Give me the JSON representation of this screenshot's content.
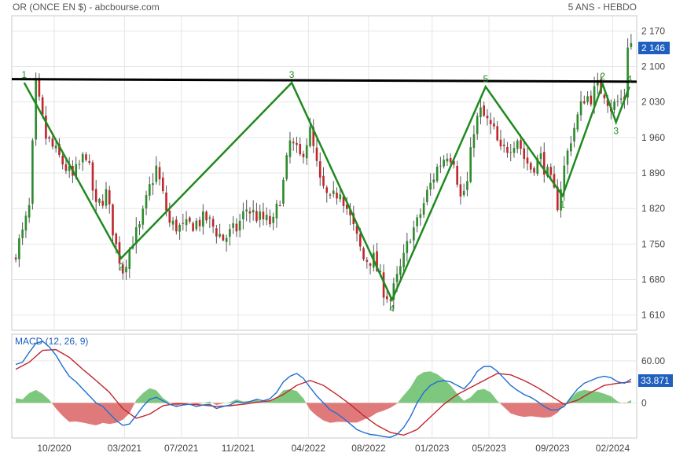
{
  "header": {
    "title": "OR (ONCE EN $) - abcbourse.com",
    "period": "5 ANS - HEBDO"
  },
  "colors": {
    "up": "#2e8b2e",
    "down": "#c1272d",
    "wick": "#555555",
    "wave": "#1f8a1f",
    "resistance": "#000000",
    "macd_line": "#1f6fd1",
    "signal_line": "#c1272d",
    "hist_pos": "#7ec77e",
    "hist_neg": "#e07a7a",
    "badge_bg": "#1f5fbf",
    "grid": "#e6e6e6"
  },
  "chart_data": [
    {
      "type": "candlestick",
      "title": "OR (ONCE EN $) - abcbourse.com",
      "ylim": [
        1580,
        2200
      ],
      "y_ticks": [
        "2 170",
        "2 100",
        "2 030",
        "1 960",
        "1 890",
        "1 820",
        "1 750",
        "1 680",
        "1 610"
      ],
      "y_tick_values": [
        2170,
        2100,
        2030,
        1960,
        1890,
        1820,
        1750,
        1680,
        1610
      ],
      "x_ticks": [
        "10/2020",
        "03/2021",
        "07/2021",
        "11/2021",
        "04/2022",
        "08/2022",
        "01/2023",
        "05/2023",
        "09/2023",
        "02/2024"
      ],
      "x_tick_weeks": [
        12,
        33,
        50,
        67,
        88,
        106,
        125,
        142,
        161,
        179
      ],
      "last_price": "2 146",
      "resistance": {
        "start": 2075,
        "end": 2070
      },
      "grid": true,
      "wave_points": [
        {
          "week": 3,
          "price": 2068,
          "label": "1"
        },
        {
          "week": 32,
          "price": 1722,
          "label": "2"
        },
        {
          "week": 83,
          "price": 2068,
          "label": "3"
        },
        {
          "week": 113,
          "price": 1640,
          "label": "4"
        },
        {
          "week": 141,
          "price": 2060,
          "label": "5"
        },
        {
          "week": 164,
          "price": 1845,
          "label": "1"
        },
        {
          "week": 176,
          "price": 2065,
          "label": "2"
        },
        {
          "week": 180,
          "price": 1990,
          "label": "3"
        },
        {
          "week": 184,
          "price": 2060,
          "label": "4"
        }
      ],
      "anchors": [
        [
          0,
          1720
        ],
        [
          3,
          1770
        ],
        [
          5,
          1820
        ],
        [
          7,
          2060
        ],
        [
          10,
          1960
        ],
        [
          14,
          1920
        ],
        [
          18,
          1880
        ],
        [
          22,
          1930
        ],
        [
          25,
          1820
        ],
        [
          28,
          1850
        ],
        [
          31,
          1745
        ],
        [
          33,
          1700
        ],
        [
          36,
          1760
        ],
        [
          38,
          1780
        ],
        [
          41,
          1860
        ],
        [
          43,
          1900
        ],
        [
          47,
          1790
        ],
        [
          51,
          1780
        ],
        [
          54,
          1790
        ],
        [
          58,
          1800
        ],
        [
          63,
          1760
        ],
        [
          67,
          1780
        ],
        [
          70,
          1820
        ],
        [
          74,
          1800
        ],
        [
          78,
          1790
        ],
        [
          81,
          1870
        ],
        [
          83,
          1950
        ],
        [
          86,
          1920
        ],
        [
          89,
          1970
        ],
        [
          92,
          1870
        ],
        [
          95,
          1830
        ],
        [
          98,
          1860
        ],
        [
          102,
          1780
        ],
        [
          105,
          1720
        ],
        [
          108,
          1720
        ],
        [
          111,
          1660
        ],
        [
          113,
          1640
        ],
        [
          115,
          1680
        ],
        [
          117,
          1720
        ],
        [
          119,
          1770
        ],
        [
          121,
          1790
        ],
        [
          124,
          1850
        ],
        [
          127,
          1900
        ],
        [
          130,
          1930
        ],
        [
          132,
          1920
        ],
        [
          134,
          1840
        ],
        [
          136,
          1870
        ],
        [
          138,
          1980
        ],
        [
          140,
          2010
        ],
        [
          142,
          1990
        ],
        [
          144,
          1970
        ],
        [
          146,
          1930
        ],
        [
          148,
          1940
        ],
        [
          151,
          1960
        ],
        [
          153,
          1920
        ],
        [
          155,
          1900
        ],
        [
          158,
          1920
        ],
        [
          161,
          1870
        ],
        [
          163,
          1830
        ],
        [
          165,
          1900
        ],
        [
          167,
          1960
        ],
        [
          169,
          2000
        ],
        [
          171,
          2040
        ],
        [
          173,
          2040
        ],
        [
          175,
          2060
        ],
        [
          177,
          2050
        ],
        [
          179,
          2020
        ],
        [
          181,
          2030
        ],
        [
          183,
          2040
        ],
        [
          184,
          2146
        ]
      ]
    },
    {
      "type": "macd",
      "title": "MACD (12, 26, 9)",
      "ylim": [
        -50,
        98
      ],
      "y_ticks": [
        "60.00",
        "0"
      ],
      "y_tick_values": [
        60,
        0
      ],
      "last_value": "33.871",
      "macd": [
        [
          0,
          55
        ],
        [
          2,
          58
        ],
        [
          4,
          72
        ],
        [
          6,
          85
        ],
        [
          8,
          88
        ],
        [
          10,
          80
        ],
        [
          12,
          68
        ],
        [
          14,
          52
        ],
        [
          16,
          38
        ],
        [
          18,
          30
        ],
        [
          20,
          20
        ],
        [
          22,
          10
        ],
        [
          24,
          0
        ],
        [
          26,
          -5
        ],
        [
          28,
          -15
        ],
        [
          30,
          -25
        ],
        [
          32,
          -32
        ],
        [
          34,
          -30
        ],
        [
          36,
          -18
        ],
        [
          38,
          -5
        ],
        [
          40,
          5
        ],
        [
          42,
          8
        ],
        [
          44,
          3
        ],
        [
          46,
          -2
        ],
        [
          48,
          -5
        ],
        [
          50,
          -3
        ],
        [
          52,
          -2
        ],
        [
          54,
          -5
        ],
        [
          56,
          -3
        ],
        [
          58,
          -2
        ],
        [
          60,
          -8
        ],
        [
          62,
          -5
        ],
        [
          64,
          -3
        ],
        [
          66,
          2
        ],
        [
          68,
          0
        ],
        [
          70,
          2
        ],
        [
          72,
          5
        ],
        [
          74,
          3
        ],
        [
          76,
          6
        ],
        [
          78,
          15
        ],
        [
          80,
          30
        ],
        [
          82,
          38
        ],
        [
          84,
          42
        ],
        [
          86,
          35
        ],
        [
          88,
          22
        ],
        [
          90,
          10
        ],
        [
          92,
          0
        ],
        [
          94,
          -10
        ],
        [
          96,
          -15
        ],
        [
          98,
          -22
        ],
        [
          100,
          -30
        ],
        [
          102,
          -38
        ],
        [
          104,
          -42
        ],
        [
          106,
          -45
        ],
        [
          108,
          -46
        ],
        [
          110,
          -48
        ],
        [
          112,
          -49
        ],
        [
          114,
          -45
        ],
        [
          116,
          -35
        ],
        [
          118,
          -20
        ],
        [
          120,
          0
        ],
        [
          122,
          15
        ],
        [
          124,
          25
        ],
        [
          126,
          30
        ],
        [
          128,
          32
        ],
        [
          130,
          30
        ],
        [
          132,
          25
        ],
        [
          134,
          20
        ],
        [
          136,
          30
        ],
        [
          138,
          45
        ],
        [
          140,
          52
        ],
        [
          142,
          52
        ],
        [
          144,
          45
        ],
        [
          146,
          35
        ],
        [
          148,
          25
        ],
        [
          150,
          18
        ],
        [
          152,
          12
        ],
        [
          154,
          8
        ],
        [
          156,
          2
        ],
        [
          158,
          -5
        ],
        [
          160,
          -10
        ],
        [
          162,
          -10
        ],
        [
          164,
          -5
        ],
        [
          166,
          8
        ],
        [
          168,
          20
        ],
        [
          170,
          28
        ],
        [
          172,
          32
        ],
        [
          174,
          36
        ],
        [
          176,
          38
        ],
        [
          178,
          36
        ],
        [
          180,
          30
        ],
        [
          182,
          28
        ],
        [
          184,
          34
        ]
      ],
      "signal": [
        [
          0,
          48
        ],
        [
          4,
          58
        ],
        [
          8,
          75
        ],
        [
          12,
          76
        ],
        [
          16,
          65
        ],
        [
          20,
          48
        ],
        [
          24,
          32
        ],
        [
          28,
          15
        ],
        [
          32,
          -8
        ],
        [
          36,
          -22
        ],
        [
          40,
          -16
        ],
        [
          44,
          -4
        ],
        [
          48,
          -1
        ],
        [
          52,
          -2
        ],
        [
          56,
          -3
        ],
        [
          60,
          -5
        ],
        [
          64,
          -4
        ],
        [
          68,
          -2
        ],
        [
          72,
          1
        ],
        [
          76,
          3
        ],
        [
          80,
          12
        ],
        [
          84,
          25
        ],
        [
          88,
          32
        ],
        [
          92,
          25
        ],
        [
          96,
          12
        ],
        [
          100,
          -2
        ],
        [
          104,
          -18
        ],
        [
          108,
          -32
        ],
        [
          112,
          -42
        ],
        [
          116,
          -46
        ],
        [
          120,
          -38
        ],
        [
          124,
          -20
        ],
        [
          128,
          -2
        ],
        [
          132,
          12
        ],
        [
          136,
          22
        ],
        [
          140,
          32
        ],
        [
          144,
          42
        ],
        [
          148,
          40
        ],
        [
          152,
          32
        ],
        [
          156,
          22
        ],
        [
          160,
          10
        ],
        [
          164,
          -2
        ],
        [
          168,
          4
        ],
        [
          172,
          15
        ],
        [
          176,
          25
        ],
        [
          180,
          28
        ],
        [
          184,
          30
        ]
      ]
    }
  ]
}
